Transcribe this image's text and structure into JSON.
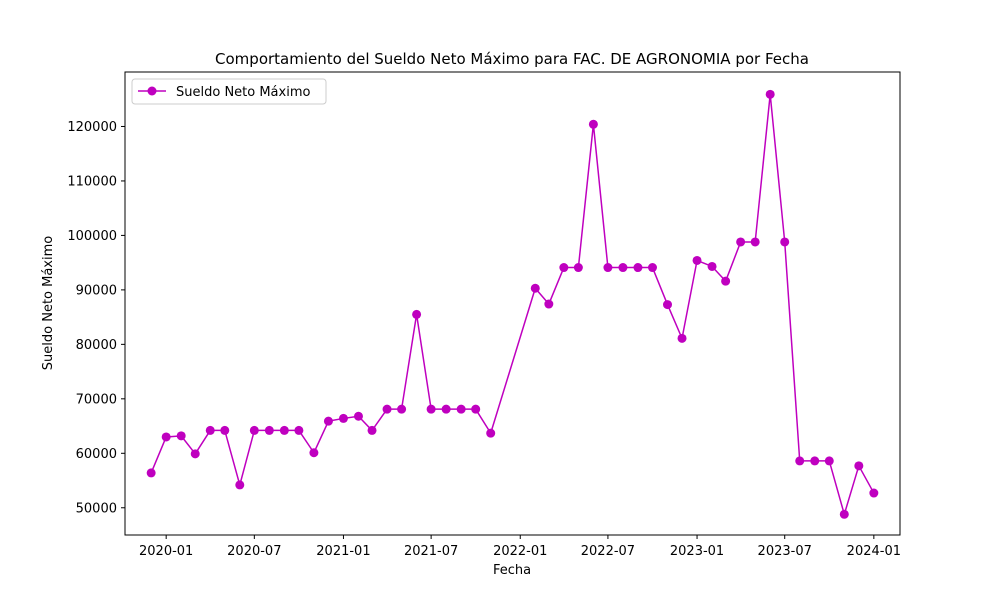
{
  "chart_data": {
    "type": "line",
    "title": "Comportamiento del Sueldo Neto Máximo para FAC. DE AGRONOMIA por Fecha",
    "xlabel": "Fecha",
    "ylabel": "Sueldo Neto Máximo",
    "x_tick_labels": [
      "2020-01",
      "2020-07",
      "2021-01",
      "2021-07",
      "2022-01",
      "2022-07",
      "2023-01",
      "2023-07",
      "2024-01"
    ],
    "y_tick_labels": [
      "50000",
      "60000",
      "70000",
      "80000",
      "90000",
      "100000",
      "110000",
      "120000"
    ],
    "xlim": [
      "2019-10-08",
      "2024-02-24"
    ],
    "ylim": [
      45000,
      130000
    ],
    "legend": {
      "location": "upper left"
    },
    "grid": false,
    "series": [
      {
        "name": "Sueldo Neto Máximo",
        "color": "#bf00bf",
        "marker": "circle",
        "x": [
          "2019-12-01",
          "2020-01-01",
          "2020-02-01",
          "2020-03-01",
          "2020-04-01",
          "2020-05-01",
          "2020-06-01",
          "2020-07-01",
          "2020-08-01",
          "2020-09-01",
          "2020-10-01",
          "2020-11-01",
          "2020-12-01",
          "2021-01-01",
          "2021-02-01",
          "2021-03-01",
          "2021-04-01",
          "2021-05-01",
          "2021-06-01",
          "2021-07-01",
          "2021-08-01",
          "2021-09-01",
          "2021-10-01",
          "2021-11-01",
          "2022-02-01",
          "2022-03-01",
          "2022-04-01",
          "2022-05-01",
          "2022-06-01",
          "2022-07-01",
          "2022-08-01",
          "2022-09-01",
          "2022-10-01",
          "2022-11-01",
          "2022-12-01",
          "2023-01-01",
          "2023-02-01",
          "2023-03-01",
          "2023-04-01",
          "2023-05-01",
          "2023-06-01",
          "2023-07-01",
          "2023-08-01",
          "2023-09-01",
          "2023-10-01",
          "2023-11-01",
          "2023-12-01",
          "2024-01-01"
        ],
        "values": [
          56400,
          63000,
          63200,
          59900,
          64200,
          64200,
          54200,
          64200,
          64200,
          64200,
          64200,
          60100,
          65900,
          66400,
          66800,
          64200,
          68100,
          68100,
          85500,
          68100,
          68100,
          68100,
          68100,
          63700,
          90300,
          87400,
          94100,
          94100,
          120400,
          94100,
          94100,
          94100,
          94100,
          87300,
          81100,
          95400,
          94300,
          91600,
          98800,
          98800,
          125900,
          98800,
          58600,
          58600,
          58600,
          48800,
          57700,
          52700
        ]
      }
    ]
  }
}
